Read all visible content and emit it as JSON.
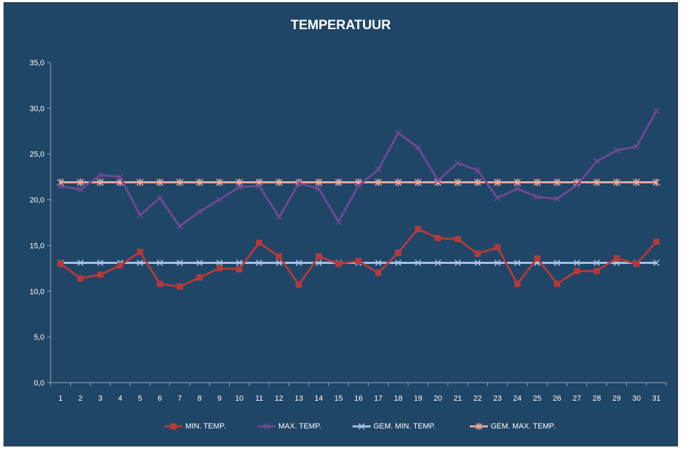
{
  "chart_data": {
    "type": "line",
    "title": "TEMPERATUUR",
    "xlabel": "",
    "ylabel": "",
    "ylim": [
      0,
      35
    ],
    "yticks": [
      "0,0",
      "5,0",
      "10,0",
      "15,0",
      "20,0",
      "25,0",
      "30,0",
      "35,0"
    ],
    "ytick_values": [
      0,
      5,
      10,
      15,
      20,
      25,
      30,
      35
    ],
    "categories": [
      "1",
      "2",
      "3",
      "4",
      "5",
      "6",
      "7",
      "8",
      "9",
      "10",
      "11",
      "12",
      "13",
      "14",
      "15",
      "16",
      "17",
      "18",
      "19",
      "20",
      "21",
      "22",
      "23",
      "24",
      "25",
      "26",
      "27",
      "28",
      "29",
      "30",
      "31"
    ],
    "grid": false,
    "legend_position": "bottom",
    "series": [
      {
        "name": "MIN. TEMP.",
        "color": "#b33a3a",
        "marker": "square",
        "values": [
          13.0,
          11.4,
          11.8,
          12.8,
          14.3,
          10.8,
          10.5,
          11.5,
          12.5,
          12.4,
          15.3,
          13.8,
          10.7,
          13.8,
          13.0,
          13.3,
          12.0,
          14.2,
          16.8,
          15.8,
          15.7,
          14.1,
          14.8,
          10.8,
          13.6,
          10.8,
          12.2,
          12.2,
          13.6,
          13.0,
          15.4
        ]
      },
      {
        "name": "MAX. TEMP.",
        "color": "#6e4a8f",
        "marker": "x",
        "values": [
          21.5,
          21.1,
          22.7,
          22.5,
          18.3,
          20.2,
          17.1,
          18.7,
          20.0,
          21.4,
          21.5,
          18.1,
          21.8,
          21.2,
          17.6,
          21.5,
          23.3,
          27.3,
          25.7,
          22.1,
          24.0,
          23.2,
          20.2,
          21.2,
          20.3,
          20.1,
          21.6,
          24.2,
          25.4,
          25.8,
          29.7
        ]
      },
      {
        "name": "GEM. MIN. TEMP.",
        "color": "#a9c2e6",
        "marker": "x",
        "values": [
          13.1,
          13.1,
          13.1,
          13.1,
          13.1,
          13.1,
          13.1,
          13.1,
          13.1,
          13.1,
          13.1,
          13.1,
          13.1,
          13.1,
          13.1,
          13.1,
          13.1,
          13.1,
          13.1,
          13.1,
          13.1,
          13.1,
          13.1,
          13.1,
          13.1,
          13.1,
          13.1,
          13.1,
          13.1,
          13.1,
          13.1
        ]
      },
      {
        "name": "GEM. MAX. TEMP.",
        "color": "#e7a9a3",
        "marker": "star",
        "values": [
          21.9,
          21.9,
          21.9,
          21.9,
          21.9,
          21.9,
          21.9,
          21.9,
          21.9,
          21.9,
          21.9,
          21.9,
          21.9,
          21.9,
          21.9,
          21.9,
          21.9,
          21.9,
          21.9,
          21.9,
          21.9,
          21.9,
          21.9,
          21.9,
          21.9,
          21.9,
          21.9,
          21.9,
          21.9,
          21.9,
          21.9
        ]
      }
    ]
  },
  "colors": {
    "background": "#1f4567",
    "axis": "#a0a8b0",
    "text": "#ffffff"
  }
}
